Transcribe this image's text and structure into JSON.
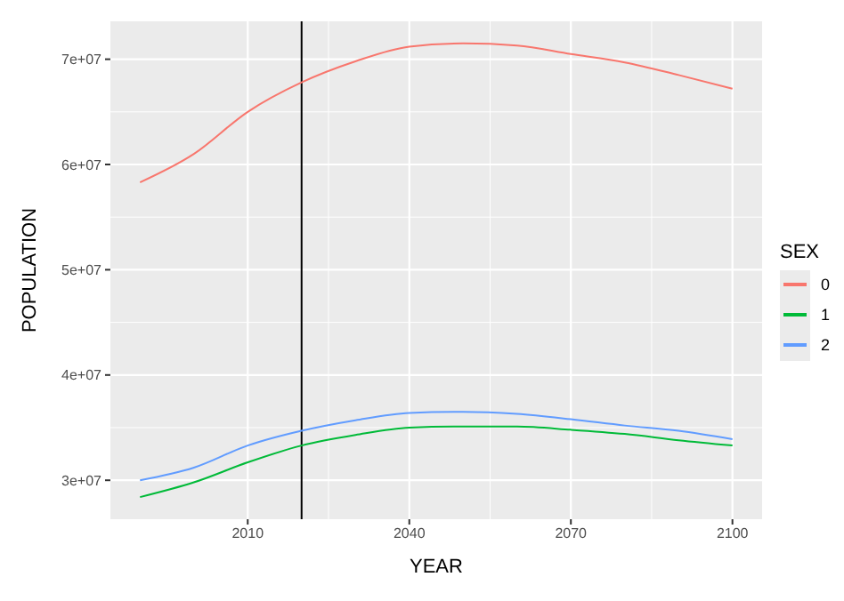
{
  "chart_data": {
    "type": "line",
    "xlabel": "YEAR",
    "ylabel": "POPULATION",
    "legend_title": "SEX",
    "x": [
      1990,
      2000,
      2010,
      2020,
      2030,
      2040,
      2050,
      2060,
      2070,
      2080,
      2090,
      2100
    ],
    "series": [
      {
        "name": "0",
        "color": "#f8766d",
        "values": [
          58300000,
          61000000,
          65000000,
          67800000,
          69800000,
          71200000,
          71500000,
          71300000,
          70500000,
          69700000,
          68500000,
          67200000
        ]
      },
      {
        "name": "1",
        "color": "#00ba38",
        "values": [
          28400000,
          29800000,
          31700000,
          33300000,
          34300000,
          35000000,
          35100000,
          35100000,
          34800000,
          34400000,
          33800000,
          33300000
        ]
      },
      {
        "name": "2",
        "color": "#619cff",
        "values": [
          30000000,
          31200000,
          33300000,
          34700000,
          35700000,
          36400000,
          36500000,
          36300000,
          35800000,
          35200000,
          34700000,
          33900000
        ]
      }
    ],
    "xlim": [
      1984.5,
      2105.5
    ],
    "xticks": [
      2010,
      2040,
      2070,
      2100
    ],
    "ylim": [
      26300000,
      73600000
    ],
    "yticks": [
      {
        "value": 30000000,
        "label": "3e+07"
      },
      {
        "value": 40000000,
        "label": "4e+07"
      },
      {
        "value": 50000000,
        "label": "5e+07"
      },
      {
        "value": 60000000,
        "label": "6e+07"
      },
      {
        "value": 70000000,
        "label": "7e+07"
      }
    ],
    "ref_lines": [
      {
        "axis": "x",
        "value": 2020,
        "color": "#000000"
      }
    ],
    "grid": true,
    "legend": "right",
    "marker": "none",
    "line_style": "solid"
  }
}
